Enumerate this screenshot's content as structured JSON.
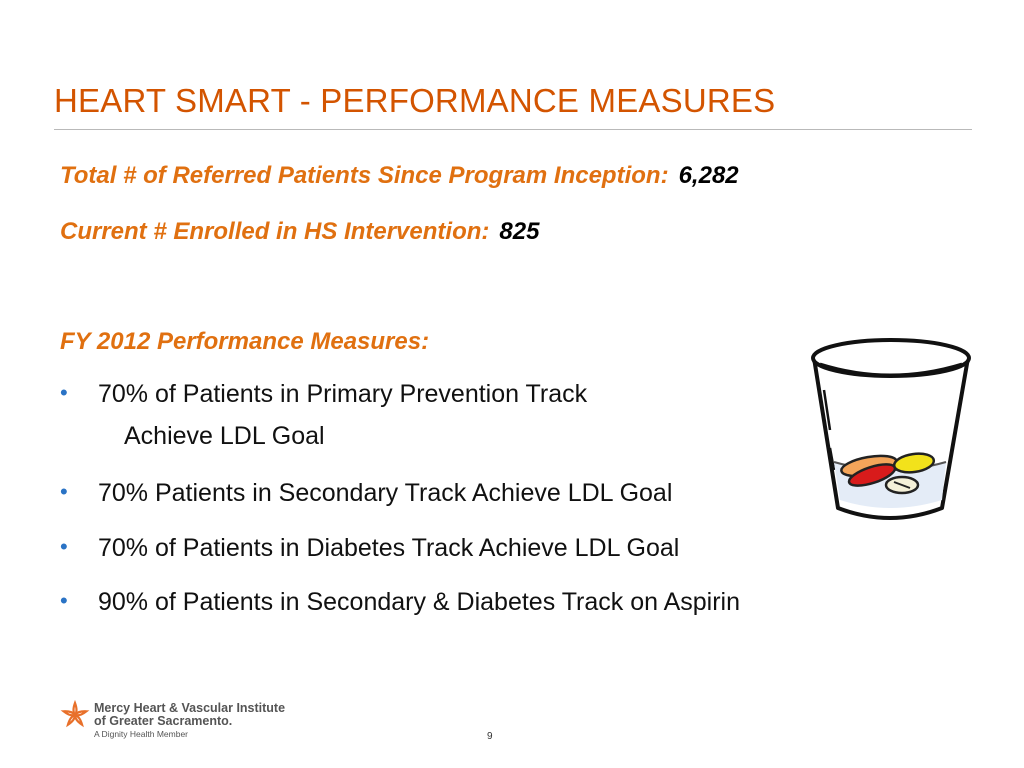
{
  "slide": {
    "title": "HEART SMART - PERFORMANCE MEASURES",
    "page_number": "9"
  },
  "stats": [
    {
      "label": "Total # of Referred Patients Since Program Inception:",
      "value": "6,282"
    },
    {
      "label": "Current # Enrolled in HS Intervention:",
      "value": "825"
    }
  ],
  "measures": {
    "heading": "FY 2012 Performance Measures:",
    "bullets": [
      {
        "text": "70% of Patients in Primary Prevention Track",
        "continuation": "Achieve LDL Goal"
      },
      {
        "text": "70% Patients in Secondary Track Achieve LDL Goal"
      },
      {
        "text": "70% of Patients in Diabetes Track Achieve LDL Goal"
      },
      {
        "text": "90% of Patients in Secondary & Diabetes Track on Aspirin"
      }
    ]
  },
  "footer": {
    "org_line1": "Mercy Heart & Vascular Institute",
    "org_line2": "of Greater Sacramento.",
    "org_tagline": "A Dignity Health Member"
  },
  "icons": {
    "clipart": "pill-glass-icon",
    "logo": "mercy-star-logo-icon"
  },
  "colors": {
    "title": "#d35400",
    "accent_orange": "#e07010",
    "bullet": "#2a73c5",
    "rule": "#b9b9b9"
  }
}
